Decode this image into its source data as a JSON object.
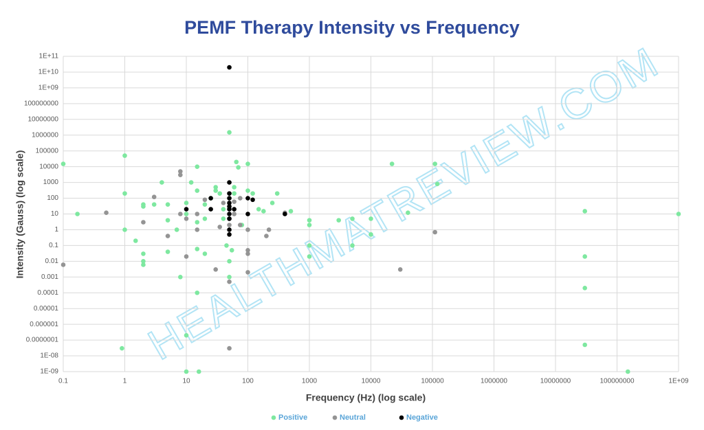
{
  "chart_data": {
    "type": "scatter",
    "title": "PEMF Therapy Intensity vs Frequency",
    "x_label": "Frequency (Hz) (log scale)",
    "y_label": "Intensity (Gauss) (log scale)",
    "watermark": "HEALTHMATREVIEW.COM",
    "x_log": true,
    "y_log": true,
    "grid": true,
    "legend": "bottom",
    "xlim": [
      0.1,
      1000000000
    ],
    "ylim": [
      1e-09,
      100000000000
    ],
    "xticks": [
      0.1,
      1,
      10,
      100,
      1000,
      10000,
      100000,
      1000000,
      10000000,
      100000000,
      {
        "value": 1000000000,
        "label": "1E+09"
      }
    ],
    "yticks": [
      {
        "value": 100000000000,
        "label": "1E+11"
      },
      {
        "value": 10000000000,
        "label": "1E+10"
      },
      {
        "value": 1000000000,
        "label": "1E+09"
      },
      100000000,
      10000000,
      1000000,
      100000,
      10000,
      1000,
      100,
      10,
      1,
      0.1,
      0.01,
      0.001,
      0.0001,
      1e-05,
      1e-06,
      {
        "value": 1e-07,
        "label": "0.0000001"
      },
      {
        "value": 1e-08,
        "label": "1E-08"
      },
      {
        "value": 1e-09,
        "label": "1E-09"
      }
    ],
    "series": [
      {
        "name": "Positive",
        "color": "#7ee8a0",
        "x": [
          0.1,
          0.17,
          0.9,
          1,
          1,
          1,
          1.5,
          2,
          2,
          2,
          2,
          2,
          3,
          4,
          5,
          5,
          5,
          7,
          8,
          10,
          10,
          10,
          10,
          12,
          15,
          15,
          15,
          15,
          16,
          15,
          20,
          20,
          20,
          25,
          30,
          30,
          35,
          40,
          40,
          45,
          50,
          50,
          50,
          55,
          60,
          60,
          65,
          70,
          80,
          100,
          100,
          120,
          150,
          180,
          250,
          300,
          500,
          1000,
          1000,
          1000,
          1000,
          3000,
          5000,
          5000,
          10000,
          10000,
          22000,
          40000,
          110000,
          120000,
          30000000,
          30000000,
          30000000,
          30000000,
          150000000,
          1000000000
        ],
        "values": [
          15000,
          10,
          3e-08,
          50000,
          200,
          1,
          0.2,
          30,
          0.03,
          0.01,
          0.006,
          40,
          40,
          1000,
          40,
          4,
          0.04,
          1,
          0.001,
          1e-09,
          2e-07,
          10,
          50,
          1000,
          10000,
          300,
          0.06,
          0.0001,
          1e-09,
          3,
          40,
          5,
          0.03,
          100,
          300,
          500,
          200,
          20,
          5,
          0.1,
          1500000,
          0.01,
          0.001,
          0.05,
          500,
          200,
          20000,
          9000,
          2,
          15000,
          300,
          200,
          20,
          15,
          50,
          200,
          15,
          4,
          2,
          0.1,
          0.02,
          4,
          5,
          0.1,
          5,
          0.5,
          15000,
          12,
          15000,
          800,
          15,
          0.02,
          0.0002,
          5e-08,
          1e-09,
          10
        ]
      },
      {
        "name": "Neutral",
        "color": "#949494",
        "x": [
          0.1,
          0.5,
          2,
          3,
          8,
          8,
          5,
          8,
          10,
          10,
          15,
          15,
          20,
          30,
          35,
          40,
          50,
          50,
          50,
          60,
          60,
          75,
          100,
          100,
          100,
          100,
          200,
          220,
          30000,
          110000,
          400,
          75
        ],
        "values": [
          0.006,
          12,
          3,
          120,
          5000,
          3000,
          0.4,
          10,
          0.02,
          5,
          1,
          10,
          80,
          0.003,
          1.5,
          50,
          0.0005,
          3e-08,
          2,
          60,
          10,
          2,
          0.05,
          0.03,
          0.002,
          1,
          0.4,
          1,
          0.003,
          0.7,
          12,
          100
        ]
      },
      {
        "name": "Negative",
        "color": "#000000",
        "x": [
          50,
          50,
          50,
          50,
          50,
          50,
          50,
          50,
          50,
          50,
          50,
          25,
          25,
          10,
          60,
          100,
          100,
          120,
          400,
          50
        ],
        "values": [
          20000000000,
          1000,
          200,
          100,
          50,
          30,
          20,
          10,
          5,
          1,
          0.5,
          100,
          20,
          20,
          20,
          100,
          10,
          80,
          10,
          5
        ]
      }
    ]
  }
}
